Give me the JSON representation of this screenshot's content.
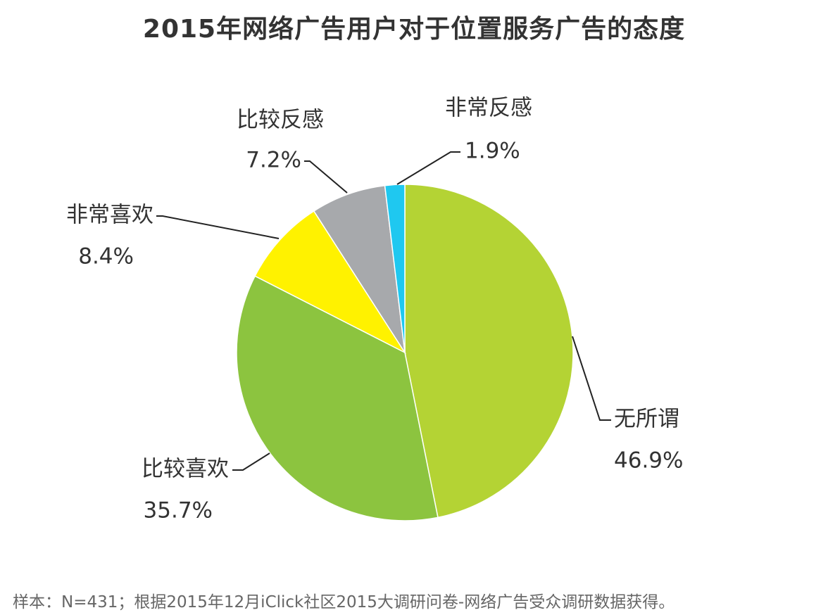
{
  "chart_data": {
    "type": "pie",
    "title": "2015年网络广告用户对于位置服务广告的态度",
    "slices": [
      {
        "label": "无所谓",
        "value": 46.9,
        "value_text": "46.9%",
        "color": "#b4d334"
      },
      {
        "label": "比较喜欢",
        "value": 35.7,
        "value_text": "35.7%",
        "color": "#8cc43f"
      },
      {
        "label": "非常喜欢",
        "value": 8.4,
        "value_text": "8.4%",
        "color": "#fff200"
      },
      {
        "label": "比较反感",
        "value": 7.2,
        "value_text": "7.2%",
        "color": "#a7a9ac"
      },
      {
        "label": "非常反感",
        "value": 1.9,
        "value_text": "1.9%",
        "color": "#1fc8f0"
      }
    ],
    "start_angle_deg": 0,
    "direction": "clockwise",
    "note": "样本：N=431；根据2015年12月iClick社区2015大调研问卷-网络广告受众调研数据获得。"
  }
}
